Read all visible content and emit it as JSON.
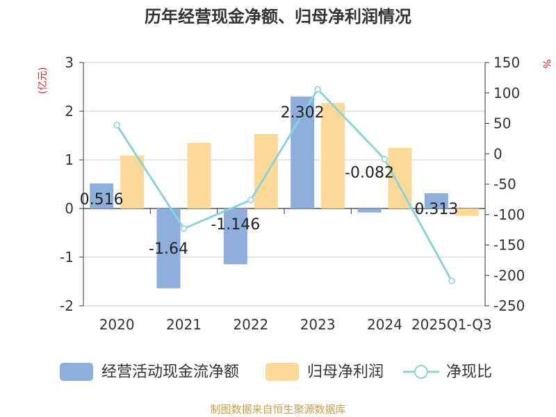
{
  "chart_data": {
    "type": "bar+line",
    "title": "历年经营现金净额、归母净利润情况",
    "categories": [
      "2020",
      "2021",
      "2022",
      "2023",
      "2024",
      "2025Q1-Q3"
    ],
    "left_axis": {
      "unit_label": "(亿元)",
      "ylim": [
        -2,
        3
      ],
      "ticks": [
        "-2",
        "-1",
        "0",
        "1",
        "2",
        "3"
      ],
      "tick_values": [
        -2,
        -1,
        0,
        1,
        2,
        3
      ]
    },
    "right_axis": {
      "unit_label": "%",
      "ylim": [
        -250,
        150
      ],
      "ticks": [
        "-250",
        "-200",
        "-150",
        "-100",
        "-50",
        "0",
        "50",
        "100",
        "150"
      ],
      "tick_values": [
        -250,
        -200,
        -150,
        -100,
        -50,
        0,
        50,
        100,
        150
      ]
    },
    "series": [
      {
        "name": "经营活动现金流净额",
        "type": "bar",
        "axis": "left",
        "color": "#8eaedb",
        "values": [
          0.516,
          -1.64,
          -1.146,
          2.302,
          -0.082,
          0.313
        ],
        "labels": [
          "0.516",
          "-1.64",
          "-1.146",
          "2.302",
          "-0.082",
          "0.313"
        ]
      },
      {
        "name": "归母净利润",
        "type": "bar",
        "axis": "left",
        "color": "#fdd896",
        "values": [
          1.09,
          1.35,
          1.53,
          2.17,
          1.25,
          -0.15
        ]
      },
      {
        "name": "净现比",
        "type": "line",
        "axis": "right",
        "color": "#89d4d8",
        "values": [
          47,
          -123,
          -76,
          106,
          -9,
          -209
        ]
      }
    ],
    "legend_position": "bottom",
    "source_note": "制图数据来自恒生聚源数据库"
  }
}
